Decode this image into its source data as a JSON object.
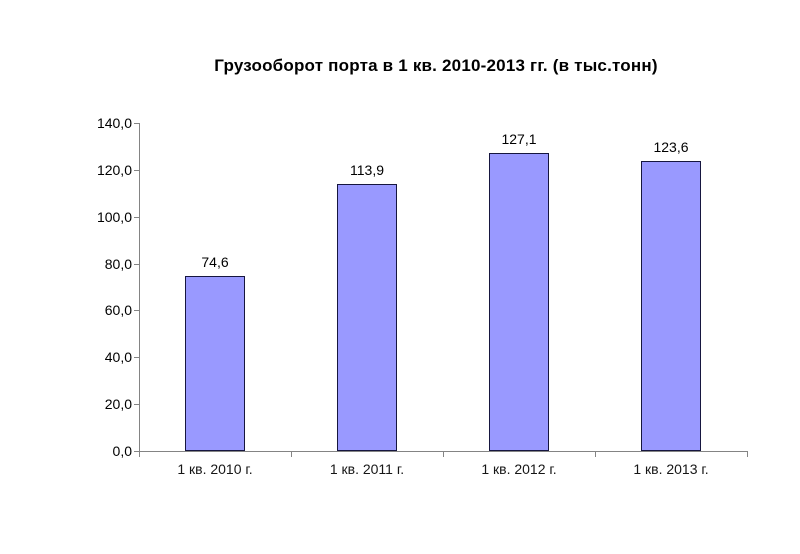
{
  "title": "Грузооборот порта в 1 кв. 2010-2013 гг. (в тыс.тонн)",
  "colors": {
    "background": "#ffffff",
    "bar_fill": "#9999ff",
    "bar_border": "#16163f",
    "axis": "#848484",
    "text": "#000000"
  },
  "chart_data": {
    "type": "bar",
    "title": "Грузооборот порта в 1 кв. 2010-2013 гг. (в тыс.тонн)",
    "categories": [
      "1 кв. 2010 г.",
      "1 кв. 2011 г.",
      "1 кв. 2012 г.",
      "1 кв. 2013 г."
    ],
    "values": [
      74.6,
      113.9,
      127.1,
      123.6
    ],
    "data_labels": [
      "74,6",
      "113,9",
      "127,1",
      "123,6"
    ],
    "y_tick_labels": [
      "0,0",
      "20,0",
      "40,0",
      "60,0",
      "80,0",
      "100,0",
      "120,0",
      "140,0"
    ],
    "y_tick_values": [
      0,
      20,
      40,
      60,
      80,
      100,
      120,
      140
    ],
    "ylim": [
      0,
      140
    ],
    "y_step": 20,
    "xlabel": "",
    "ylabel": "",
    "grid": false,
    "legend": false,
    "data_labels_position": "above-bar"
  }
}
